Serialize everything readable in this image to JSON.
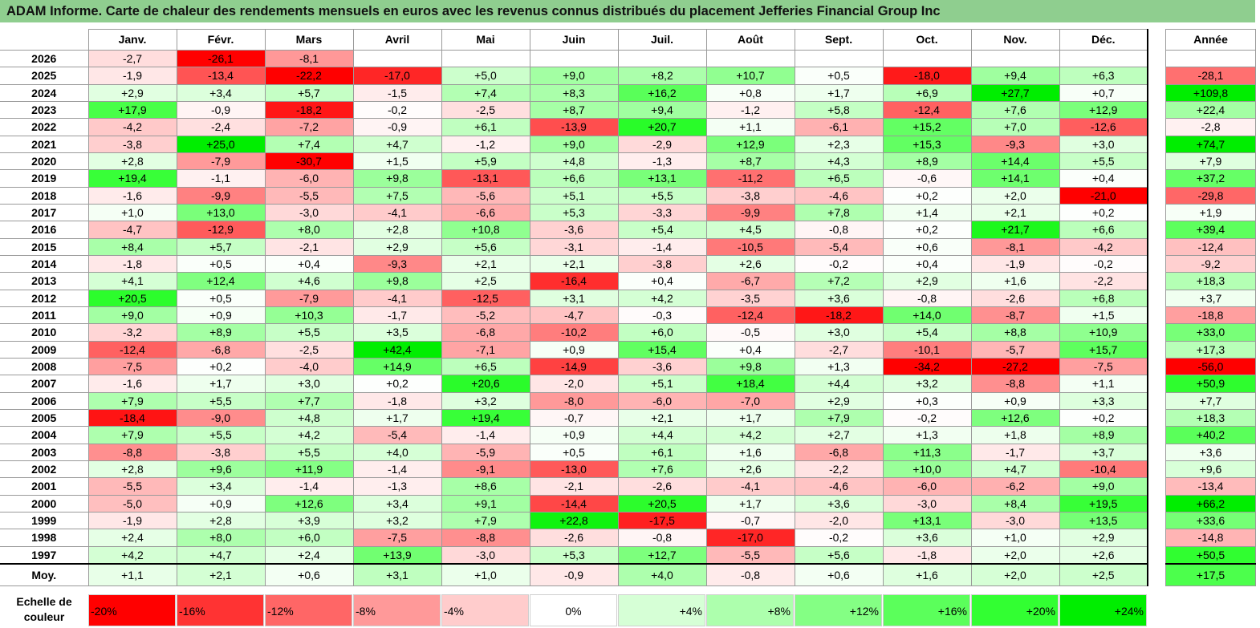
{
  "title": "ADAM Informe. Carte de chaleur des rendements mensuels en euros avec les revenus connus distribués du placement Jefferies Financial Group Inc",
  "chart_data": {
    "type": "heatmap",
    "title": "ADAM Informe. Carte de chaleur des rendements mensuels en euros avec les revenus connus distribués du placement Jefferies Financial Group Inc",
    "months": [
      "Janv.",
      "Févr.",
      "Mars",
      "Avril",
      "Mai",
      "Juin",
      "Juil.",
      "Août",
      "Sept.",
      "Oct.",
      "Nov.",
      "Déc."
    ],
    "annual_header": "Année",
    "rows": [
      {
        "year": "2026",
        "values": [
          -2.7,
          -26.1,
          -8.1,
          null,
          null,
          null,
          null,
          null,
          null,
          null,
          null,
          null
        ],
        "annual": null
      },
      {
        "year": "2025",
        "values": [
          -1.9,
          -13.4,
          -22.2,
          -17.0,
          5.0,
          9.0,
          8.2,
          10.7,
          0.5,
          -18.0,
          9.4,
          6.3
        ],
        "annual": -28.1
      },
      {
        "year": "2024",
        "values": [
          2.9,
          3.4,
          5.7,
          -1.5,
          7.4,
          8.3,
          16.2,
          0.8,
          1.7,
          6.9,
          27.7,
          0.7
        ],
        "annual": 109.8
      },
      {
        "year": "2023",
        "values": [
          17.9,
          -0.9,
          -18.2,
          -0.2,
          -2.5,
          8.7,
          9.4,
          -1.2,
          5.8,
          -12.4,
          7.6,
          12.9
        ],
        "annual": 22.4
      },
      {
        "year": "2022",
        "values": [
          -4.2,
          -2.4,
          -7.2,
          -0.9,
          6.1,
          -13.9,
          20.7,
          1.1,
          -6.1,
          15.2,
          7.0,
          -12.6
        ],
        "annual": -2.8
      },
      {
        "year": "2021",
        "values": [
          -3.8,
          25.0,
          7.4,
          4.7,
          -1.2,
          9.0,
          -2.9,
          12.9,
          2.3,
          15.3,
          -9.3,
          3.0
        ],
        "annual": 74.7
      },
      {
        "year": "2020",
        "values": [
          2.8,
          -7.9,
          -30.7,
          1.5,
          5.9,
          4.8,
          -1.3,
          8.7,
          4.3,
          8.9,
          14.4,
          5.5
        ],
        "annual": 7.9
      },
      {
        "year": "2019",
        "values": [
          19.4,
          -1.1,
          -6.0,
          9.8,
          -13.1,
          6.6,
          13.1,
          -11.2,
          6.5,
          -0.6,
          14.1,
          0.4
        ],
        "annual": 37.2
      },
      {
        "year": "2018",
        "values": [
          -1.6,
          -9.9,
          -5.5,
          7.5,
          -5.6,
          5.1,
          5.5,
          -3.8,
          -4.6,
          0.2,
          2.0,
          -21.0
        ],
        "annual": -29.8
      },
      {
        "year": "2017",
        "values": [
          1.0,
          13.0,
          -3.0,
          -4.1,
          -6.6,
          5.3,
          -3.3,
          -9.9,
          7.8,
          1.4,
          2.1,
          0.2
        ],
        "annual": 1.9
      },
      {
        "year": "2016",
        "values": [
          -4.7,
          -12.9,
          8.0,
          2.8,
          10.8,
          -3.6,
          5.4,
          4.5,
          -0.8,
          0.2,
          21.7,
          6.6
        ],
        "annual": 39.4
      },
      {
        "year": "2015",
        "values": [
          8.4,
          5.7,
          -2.1,
          2.9,
          5.6,
          -3.1,
          -1.4,
          -10.5,
          -5.4,
          0.6,
          -8.1,
          -4.2
        ],
        "annual": -12.4
      },
      {
        "year": "2014",
        "values": [
          -1.8,
          0.5,
          0.4,
          -9.3,
          2.1,
          2.1,
          -3.8,
          2.6,
          -0.2,
          0.4,
          -1.9,
          -0.2
        ],
        "annual": -9.2
      },
      {
        "year": "2013",
        "values": [
          4.1,
          12.4,
          4.6,
          9.8,
          2.5,
          -16.4,
          0.4,
          -6.7,
          7.2,
          2.9,
          1.6,
          -2.2
        ],
        "annual": 18.3
      },
      {
        "year": "2012",
        "values": [
          20.5,
          0.5,
          -7.9,
          -4.1,
          -12.5,
          3.1,
          4.2,
          -3.5,
          3.6,
          -0.8,
          -2.6,
          6.8
        ],
        "annual": 3.7
      },
      {
        "year": "2011",
        "values": [
          9.0,
          0.9,
          10.3,
          -1.7,
          -5.2,
          -4.7,
          -0.3,
          -12.4,
          -18.2,
          14.0,
          -8.7,
          1.5
        ],
        "annual": -18.8
      },
      {
        "year": "2010",
        "values": [
          -3.2,
          8.9,
          5.5,
          3.5,
          -6.8,
          -10.2,
          6.0,
          -0.5,
          3.0,
          5.4,
          8.8,
          10.9
        ],
        "annual": 33.0
      },
      {
        "year": "2009",
        "values": [
          -12.4,
          -6.8,
          -2.5,
          42.4,
          -7.1,
          0.9,
          15.4,
          0.4,
          -2.7,
          -10.1,
          -5.7,
          15.7
        ],
        "annual": 17.3
      },
      {
        "year": "2008",
        "values": [
          -7.5,
          0.2,
          -4.0,
          14.9,
          6.5,
          -14.9,
          -3.6,
          9.8,
          1.3,
          -34.2,
          -27.2,
          -7.5
        ],
        "annual": -56.0
      },
      {
        "year": "2007",
        "values": [
          -1.6,
          1.7,
          3.0,
          0.2,
          20.6,
          -2.0,
          5.1,
          18.4,
          4.4,
          3.2,
          -8.8,
          1.1
        ],
        "annual": 50.9
      },
      {
        "year": "2006",
        "values": [
          7.9,
          5.5,
          7.7,
          -1.8,
          3.2,
          -8.0,
          -6.0,
          -7.0,
          2.9,
          0.3,
          0.9,
          3.3
        ],
        "annual": 7.7
      },
      {
        "year": "2005",
        "values": [
          -18.4,
          -9.0,
          4.8,
          1.7,
          19.4,
          -0.7,
          2.1,
          1.7,
          7.9,
          -0.2,
          12.6,
          0.2
        ],
        "annual": 18.3
      },
      {
        "year": "2004",
        "values": [
          7.9,
          5.5,
          4.2,
          -5.4,
          -1.4,
          0.9,
          4.4,
          4.2,
          2.7,
          1.3,
          1.8,
          8.9
        ],
        "annual": 40.2
      },
      {
        "year": "2003",
        "values": [
          -8.8,
          -3.8,
          5.5,
          4.0,
          -5.9,
          0.5,
          6.1,
          1.6,
          -6.8,
          11.3,
          -1.7,
          3.7
        ],
        "annual": 3.6
      },
      {
        "year": "2002",
        "values": [
          2.8,
          9.6,
          11.9,
          -1.4,
          -9.1,
          -13.0,
          7.6,
          2.6,
          -2.2,
          10.0,
          4.7,
          -10.4
        ],
        "annual": 9.6
      },
      {
        "year": "2001",
        "values": [
          -5.5,
          3.4,
          -1.4,
          -1.3,
          8.6,
          -2.1,
          -2.6,
          -4.1,
          -4.6,
          -6.0,
          -6.2,
          9.0
        ],
        "annual": -13.4
      },
      {
        "year": "2000",
        "values": [
          -5.0,
          0.9,
          12.6,
          3.4,
          9.1,
          -14.4,
          20.5,
          1.7,
          3.6,
          -3.0,
          8.4,
          19.5
        ],
        "annual": 66.2
      },
      {
        "year": "1999",
        "values": [
          -1.9,
          2.8,
          3.9,
          3.2,
          7.9,
          22.8,
          -17.5,
          -0.7,
          -2.0,
          13.1,
          -3.0,
          13.5
        ],
        "annual": 33.6
      },
      {
        "year": "1998",
        "values": [
          2.4,
          8.0,
          6.0,
          -7.5,
          -8.8,
          -2.6,
          -0.8,
          -17.0,
          -0.2,
          3.6,
          1.0,
          2.9
        ],
        "annual": -14.8
      },
      {
        "year": "1997",
        "values": [
          4.2,
          4.7,
          2.4,
          13.9,
          -3.0,
          5.3,
          12.7,
          -5.5,
          5.6,
          -1.8,
          2.0,
          2.6
        ],
        "annual": 50.5
      }
    ],
    "average": {
      "label": "Moy.",
      "values": [
        1.1,
        2.1,
        0.6,
        3.1,
        1.0,
        -0.9,
        4.0,
        -0.8,
        0.6,
        1.6,
        2.0,
        2.5
      ],
      "annual": 17.5
    },
    "color_scale": {
      "label": "Echelle de couleur",
      "stops": [
        {
          "label": "-20%",
          "value": -20,
          "color": "#ff0000"
        },
        {
          "label": "-16%",
          "value": -16,
          "color": "#ff3333"
        },
        {
          "label": "-12%",
          "value": -12,
          "color": "#ff6666"
        },
        {
          "label": "-8%",
          "value": -8,
          "color": "#ff9999"
        },
        {
          "label": "-4%",
          "value": -4,
          "color": "#ffcccc"
        },
        {
          "label": "0%",
          "value": 0,
          "color": "#ffffff"
        },
        {
          "label": "+4%",
          "value": 4,
          "color": "#d6ffd6"
        },
        {
          "label": "+8%",
          "value": 8,
          "color": "#adffad"
        },
        {
          "label": "+12%",
          "value": 12,
          "color": "#84ff84"
        },
        {
          "label": "+16%",
          "value": 16,
          "color": "#5bff5b"
        },
        {
          "label": "+20%",
          "value": 20,
          "color": "#32ff32"
        },
        {
          "label": "+24%",
          "value": 24,
          "color": "#00ee00"
        }
      ]
    }
  }
}
